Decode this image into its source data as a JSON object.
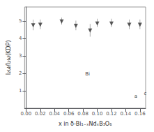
{
  "chart_data": {
    "type": "scatter",
    "xlabel": "x in δ-Bi₁₋ₓNdₓB₃O₆",
    "ylabel": "I₂ω/I₂ω(KDP)",
    "x": [
      0.01,
      0.02,
      0.05,
      0.07,
      0.09,
      0.1,
      0.12,
      0.145,
      0.16
    ],
    "values": [
      4.75,
      4.78,
      4.97,
      4.72,
      4.45,
      4.85,
      4.85,
      4.78,
      4.78
    ],
    "error_low": [
      0.28,
      0.25,
      0.18,
      0.25,
      0.35,
      0.2,
      0.2,
      0.25,
      0.25
    ],
    "error_high": [
      0.32,
      0.3,
      0.22,
      0.3,
      0.38,
      0.28,
      0.28,
      0.3,
      0.3
    ],
    "marker": "triangle-down",
    "color": "#333333",
    "xlim": [
      -0.002,
      0.168
    ],
    "ylim": [
      0.0,
      5.8
    ],
    "xticks": [
      {
        "value": 0.0,
        "label": "0.00"
      },
      {
        "value": 0.02,
        "label": "0.02"
      },
      {
        "value": 0.04,
        "label": "0.04"
      },
      {
        "value": 0.06,
        "label": "0.06"
      },
      {
        "value": 0.08,
        "label": "0.08"
      },
      {
        "value": 0.1,
        "label": "0.10"
      },
      {
        "value": 0.12,
        "label": "0.12"
      },
      {
        "value": 0.14,
        "label": "0.14"
      },
      {
        "value": 0.16,
        "label": "0.16"
      }
    ],
    "yticks": [
      1,
      2,
      3,
      4,
      5
    ],
    "grid": false,
    "annotations": [
      {
        "text": "Bi",
        "x": 0.082,
        "y": 1.95
      },
      {
        "text": "c",
        "x": 0.1645,
        "y": 0.83
      },
      {
        "text": "a",
        "x": 0.151,
        "y": 0.7
      }
    ]
  }
}
